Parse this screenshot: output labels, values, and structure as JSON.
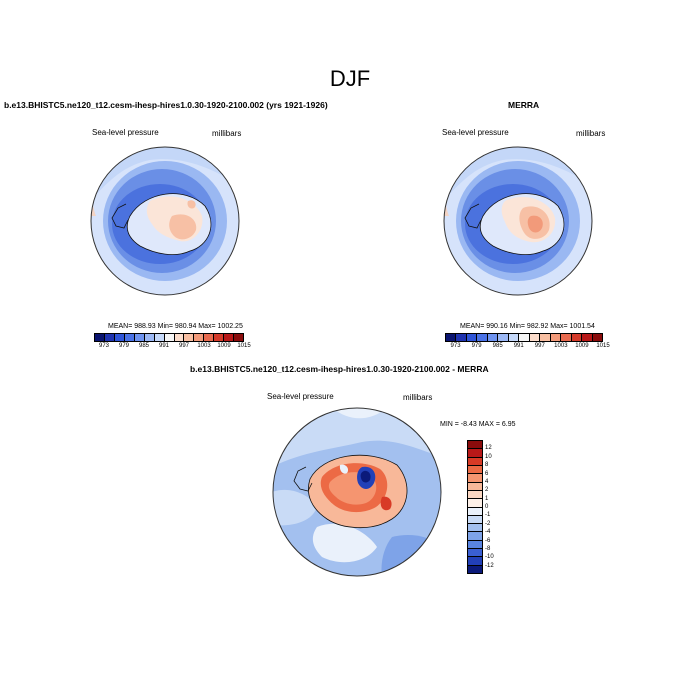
{
  "title": "DJF",
  "panels": {
    "left": {
      "title": "b.e13.BHISTC5.ne120_t12.cesm-ihesp-hires1.0.30-1920-2100.002 (yrs 1921-1926)",
      "variable": "Sea-level pressure",
      "units": "millibars",
      "stats": "MEAN= 988.93  Min= 980.94  Max= 1002.25"
    },
    "right": {
      "title": "MERRA",
      "variable": "Sea-level pressure",
      "units": "millibars",
      "stats": "MEAN= 990.16  Min= 982.92  Max= 1001.54"
    },
    "bottom": {
      "title": "b.e13.BHISTC5.ne120_t12.cesm-ihesp-hires1.0.30-1920-2100.002 - MERRA",
      "variable": "Sea-level pressure",
      "units": "millibars",
      "stats": "MIN =  -8.43 MAX =   6.95"
    }
  },
  "slp_colorbar": {
    "labels": [
      "973",
      "979",
      "985",
      "991",
      "997",
      "1003",
      "1009",
      "1015"
    ],
    "colors": [
      "#0a1470",
      "#1f33b0",
      "#2f55d8",
      "#4a72e6",
      "#6e93f0",
      "#9cb8f5",
      "#c6d9fa",
      "#f5f5f5",
      "#fbdccb",
      "#f8bfa2",
      "#f29a7a",
      "#e86a4f",
      "#d43a2a",
      "#b81818",
      "#8a0c0c"
    ]
  },
  "diff_colorbar": {
    "labels": [
      "12",
      "10",
      "8",
      "6",
      "4",
      "2",
      "1",
      "0",
      "-1",
      "-2",
      "-4",
      "-6",
      "-8",
      "-10",
      "-12"
    ],
    "colors": [
      "#8a0c0c",
      "#b81818",
      "#d83a26",
      "#ec6a45",
      "#f59570",
      "#f8b899",
      "#fbd7c2",
      "#fdf0e8",
      "#eaf1fb",
      "#c9dbf6",
      "#a3c0ef",
      "#7ea3e8",
      "#5984e0",
      "#3a5fd2",
      "#2240b8",
      "#0b1a7a"
    ]
  }
}
